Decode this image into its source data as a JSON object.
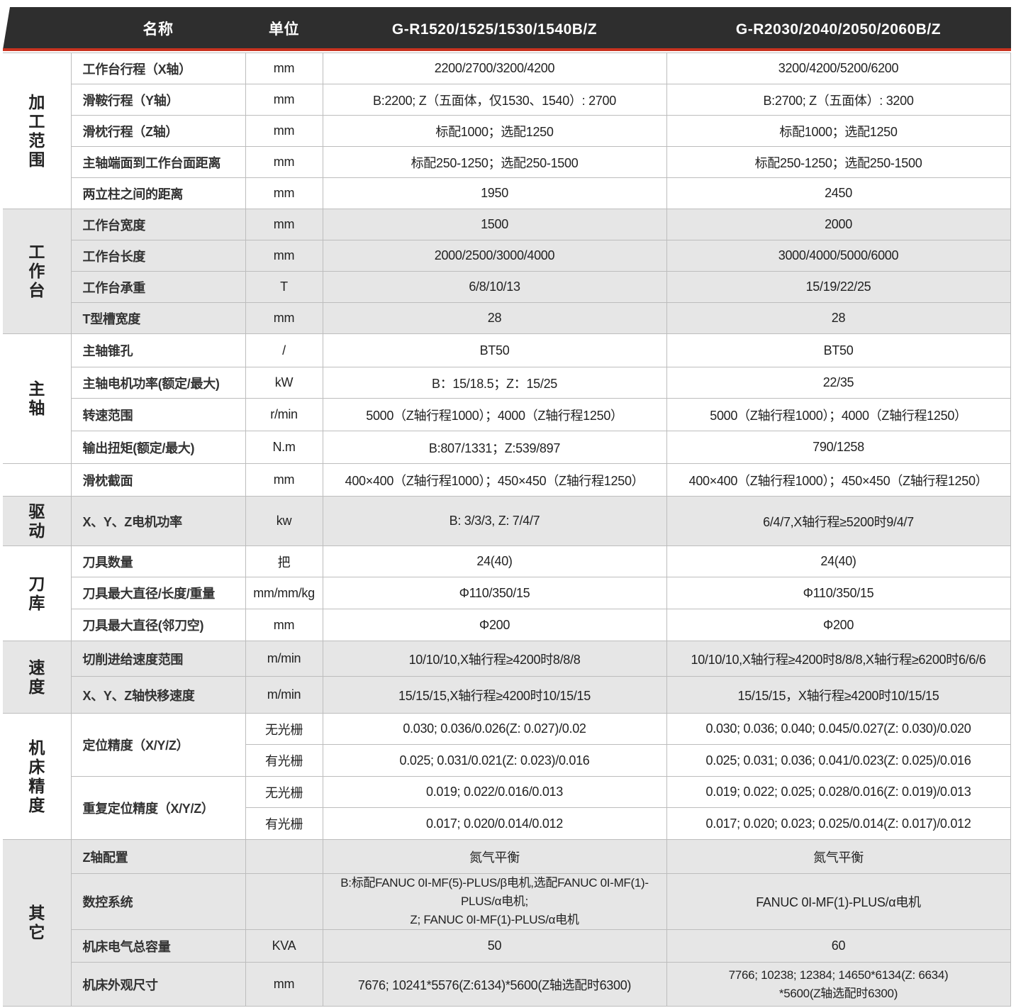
{
  "header": {
    "name": "名称",
    "unit": "单位",
    "model1": "G-R1520/1525/1530/1540B/Z",
    "model2": "G-R2030/2040/2050/2060B/Z"
  },
  "colors": {
    "header_bg": "#2e2e2e",
    "accent_line": "#c9321f",
    "gray_row": "#e6e6e6"
  },
  "groups": [
    {
      "label": "加工范围",
      "shade": false,
      "rows": [
        {
          "name": "工作台行程（X轴）",
          "unit": "mm",
          "v1": "2200/2700/3200/4200",
          "v2": "3200/4200/5200/6200"
        },
        {
          "name": "滑鞍行程（Y轴）",
          "unit": "mm",
          "v1": "B:2200; Z（五面体，仅1530、1540）: 2700",
          "v2": "B:2700; Z（五面体）: 3200"
        },
        {
          "name": "滑枕行程（Z轴）",
          "unit": "mm",
          "v1": "标配1000；选配1250",
          "v2": "标配1000；选配1250"
        },
        {
          "name": "主轴端面到工作台面距离",
          "unit": "mm",
          "v1": "标配250-1250；选配250-1500",
          "v2": "标配250-1250；选配250-1500"
        },
        {
          "name": "两立柱之间的距离",
          "unit": "mm",
          "v1": "1950",
          "v2": "2450"
        }
      ]
    },
    {
      "label": "工作台",
      "shade": true,
      "rows": [
        {
          "name": "工作台宽度",
          "unit": "mm",
          "v1": "1500",
          "v2": "2000"
        },
        {
          "name": "工作台长度",
          "unit": "mm",
          "v1": "2000/2500/3000/4000",
          "v2": "3000/4000/5000/6000"
        },
        {
          "name": "工作台承重",
          "unit": "T",
          "v1": "6/8/10/13",
          "v2": "15/19/22/25"
        },
        {
          "name": "T型槽宽度",
          "unit": "mm",
          "v1": "28",
          "v2": "28"
        }
      ]
    },
    {
      "label": "主轴",
      "shade": false,
      "rows": [
        {
          "name": "主轴锥孔",
          "unit": "/",
          "v1": "BT50",
          "v2": "BT50"
        },
        {
          "name": "主轴电机功率(额定/最大)",
          "unit": "kW",
          "v1": "B：15/18.5；Z：15/25",
          "v2": "22/35"
        },
        {
          "name": "转速范围",
          "unit": "r/min",
          "v1": "5000（Z轴行程1000）；4000（Z轴行程1250）",
          "v2": "5000（Z轴行程1000）；4000（Z轴行程1250）"
        },
        {
          "name": "输出扭矩(额定/最大)",
          "unit": "N.m",
          "v1": "B:807/1331；Z:539/897",
          "v2": "790/1258"
        }
      ]
    },
    {
      "label": "",
      "shade": false,
      "rows": [
        {
          "name": "滑枕截面",
          "unit": "mm",
          "v1": "400×400（Z轴行程1000）；450×450（Z轴行程1250）",
          "v2": "400×400（Z轴行程1000）；450×450（Z轴行程1250）"
        }
      ]
    },
    {
      "label": "驱动",
      "shade": true,
      "rows": [
        {
          "name": "X、Y、Z电机功率",
          "unit": "kw",
          "v1": "B: 3/3/3, Z: 7/4/7",
          "v2": "6/4/7,X轴行程≥5200时9/4/7"
        }
      ]
    },
    {
      "label": "刀库",
      "shade": false,
      "rows": [
        {
          "name": "刀具数量",
          "unit": "把",
          "v1": "24(40)",
          "v2": "24(40)"
        },
        {
          "name": "刀具最大直径/长度/重量",
          "unit": "mm/mm/kg",
          "v1": "Φ110/350/15",
          "v2": "Φ110/350/15"
        },
        {
          "name": "刀具最大直径(邻刀空)",
          "unit": "mm",
          "v1": "Φ200",
          "v2": "Φ200"
        }
      ]
    },
    {
      "label": "速度",
      "shade": true,
      "rows": [
        {
          "name": "切削进给速度范围",
          "unit": "m/min",
          "v1": "10/10/10,X轴行程≥4200时8/8/8",
          "v2": "10/10/10,X轴行程≥4200时8/8/8,X轴行程≥6200时6/6/6"
        },
        {
          "name": "X、Y、Z轴快移速度",
          "unit": "m/min",
          "v1": "15/15/15,X轴行程≥4200时10/15/15",
          "v2": "15/15/15，X轴行程≥4200时10/15/15"
        }
      ]
    },
    {
      "label": "机床精度",
      "shade": false,
      "rows": [
        {
          "name": "定位精度（X/Y/Z）",
          "sub": [
            {
              "unit": "无光栅",
              "v1": "0.030; 0.036/0.026(Z: 0.027)/0.02",
              "v2": "0.030; 0.036; 0.040; 0.045/0.027(Z: 0.030)/0.020"
            },
            {
              "unit": "有光栅",
              "v1": "0.025; 0.031/0.021(Z: 0.023)/0.016",
              "v2": "0.025; 0.031; 0.036; 0.041/0.023(Z: 0.025)/0.016"
            }
          ]
        },
        {
          "name": "重复定位精度（X/Y/Z）",
          "sub": [
            {
              "unit": "无光栅",
              "v1": "0.019; 0.022/0.016/0.013",
              "v2": "0.019; 0.022; 0.025; 0.028/0.016(Z: 0.019)/0.013"
            },
            {
              "unit": "有光栅",
              "v1": "0.017; 0.020/0.014/0.012",
              "v2": "0.017; 0.020; 0.023; 0.025/0.014(Z: 0.017)/0.012"
            }
          ]
        }
      ]
    },
    {
      "label": "其它",
      "shade": true,
      "rows": [
        {
          "name": "Z轴配置",
          "unit": "",
          "v1": "氮气平衡",
          "v2": "氮气平衡"
        },
        {
          "name": "数控系统",
          "unit": "",
          "v1": "B:标配FANUC 0I-MF(5)-PLUS/β电机,选配FANUC 0I-MF(1)-PLUS/α电机;\nZ; FANUC 0I-MF(1)-PLUS/α电机",
          "v2": "FANUC 0I-MF(1)-PLUS/α电机"
        },
        {
          "name": "机床电气总容量",
          "unit": "KVA",
          "v1": "50",
          "v2": "60"
        },
        {
          "name": "机床外观尺寸",
          "unit": "mm",
          "v1": "7676; 10241*5576(Z:6134)*5600(Z轴选配时6300)",
          "v2": "7766; 10238; 12384; 14650*6134(Z: 6634)\n*5600(Z轴选配时6300)"
        }
      ]
    }
  ]
}
